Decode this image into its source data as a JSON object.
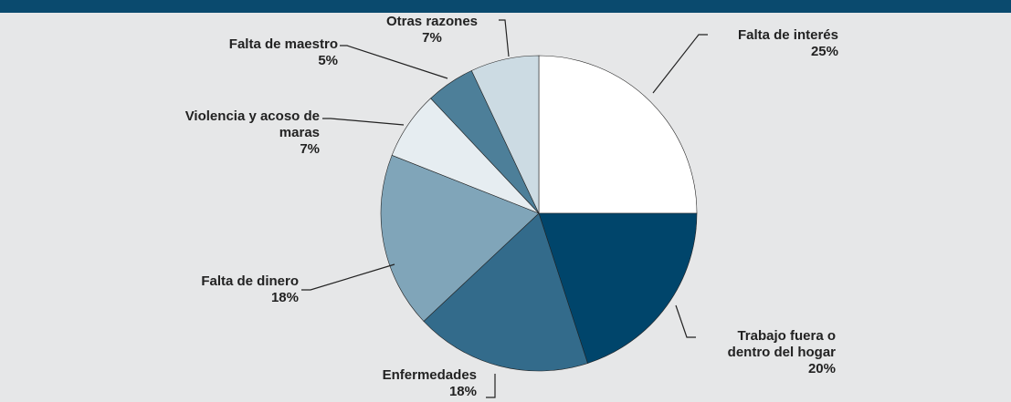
{
  "chart_data": {
    "type": "pie",
    "categories": [
      "Falta de interés",
      "Trabajo fuera o dentro del hogar",
      "Enfermedades",
      "Falta de dinero",
      "Violencia y acoso de maras",
      "Falta de maestro",
      "Otras razones"
    ],
    "values": [
      25,
      20,
      18,
      18,
      7,
      5,
      7
    ],
    "value_labels": [
      "25%",
      "20%",
      "18%",
      "18%",
      "7%",
      "5%",
      "7%"
    ],
    "colors": [
      "#ffffff",
      "#00456b",
      "#336b8b",
      "#80a5b9",
      "#e6edf1",
      "#4d7f99",
      "#ccdbe3"
    ]
  }
}
